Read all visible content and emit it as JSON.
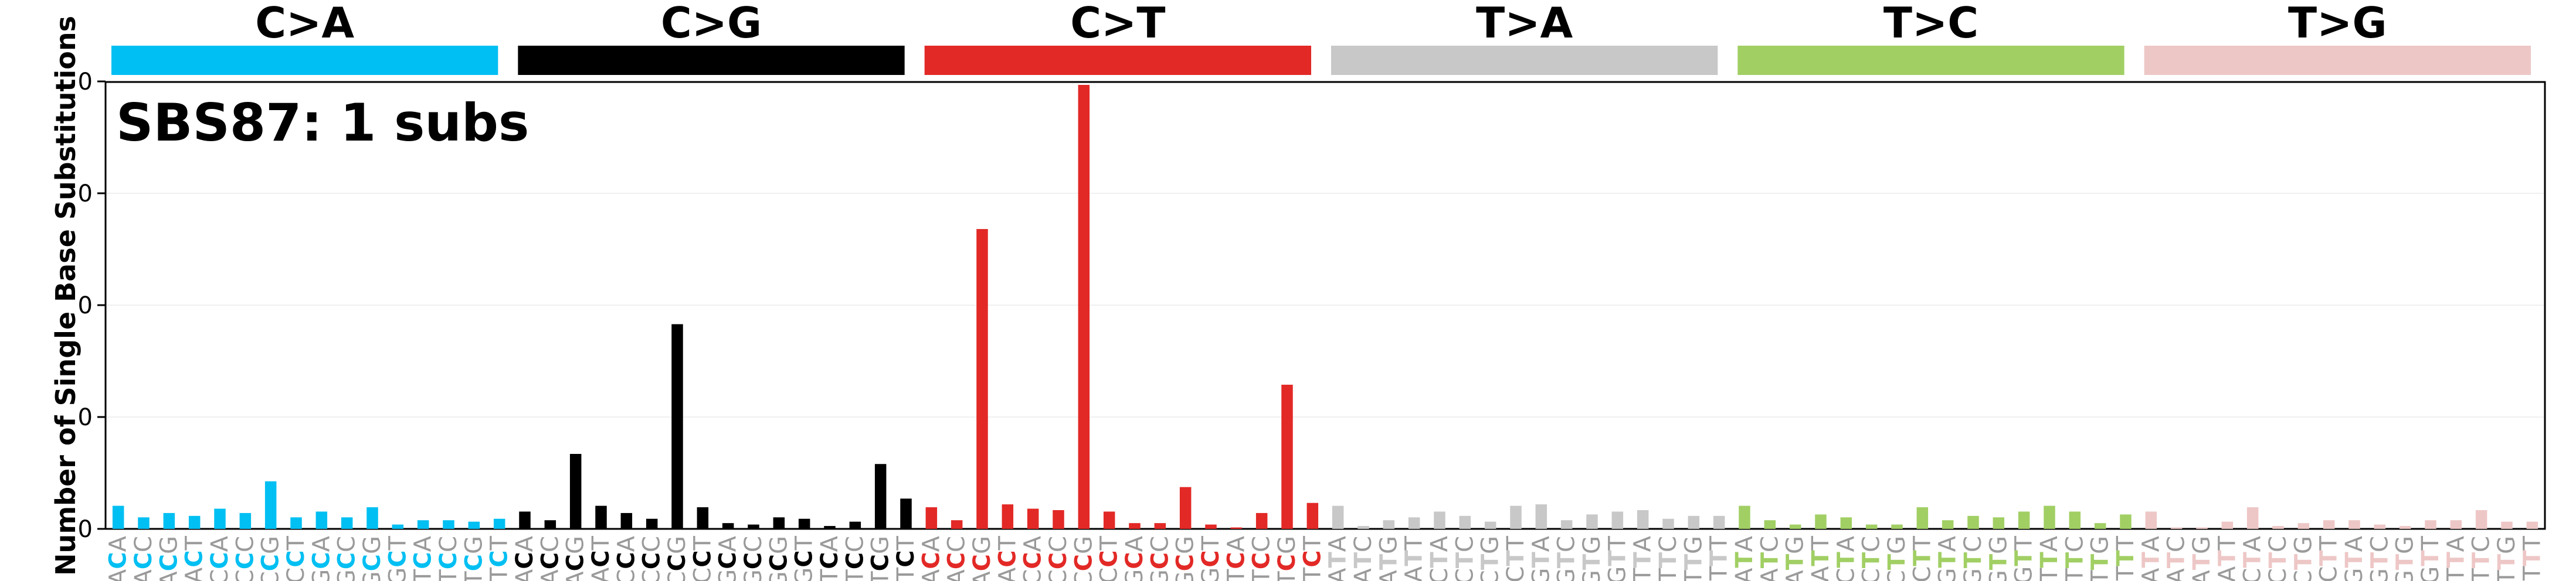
{
  "chart_data": {
    "type": "bar",
    "title": "SBS87: 1 subs",
    "ylabel": "Number of Single Base Substitutions",
    "ylim": [
      0,
      0.31
    ],
    "yticks": [
      "0",
      "0",
      "0",
      "0",
      "0"
    ],
    "grid": true,
    "colors": [
      "#00bff2",
      "#000000",
      "#e22926",
      "#c8c8c8",
      "#a1cf64",
      "#edc7c6"
    ],
    "groups": [
      "C>A",
      "C>G",
      "C>T",
      "T>A",
      "T>C",
      "T>G"
    ],
    "categories": [
      "ACA",
      "ACC",
      "ACG",
      "ACT",
      "CCA",
      "CCC",
      "CCG",
      "CCT",
      "GCA",
      "GCC",
      "GCG",
      "GCT",
      "TCA",
      "TCC",
      "TCG",
      "TCT",
      "ACA",
      "ACC",
      "ACG",
      "ACT",
      "CCA",
      "CCC",
      "CCG",
      "CCT",
      "GCA",
      "GCC",
      "GCG",
      "GCT",
      "TCA",
      "TCC",
      "TCG",
      "TCT",
      "ACA",
      "ACC",
      "ACG",
      "ACT",
      "CCA",
      "CCC",
      "CCG",
      "CCT",
      "GCA",
      "GCC",
      "GCG",
      "GCT",
      "TCA",
      "TCC",
      "TCG",
      "TCT",
      "ATA",
      "ATC",
      "ATG",
      "ATT",
      "CTA",
      "CTC",
      "CTG",
      "CTT",
      "GTA",
      "GTC",
      "GTG",
      "GTT",
      "TTA",
      "TTC",
      "TTG",
      "TTT",
      "ATA",
      "ATC",
      "ATG",
      "ATT",
      "CTA",
      "CTC",
      "CTG",
      "CTT",
      "GTA",
      "GTC",
      "GTG",
      "GTT",
      "TTA",
      "TTC",
      "TTG",
      "TTT",
      "ATA",
      "ATC",
      "ATG",
      "ATT",
      "CTA",
      "CTC",
      "CTG",
      "CTT",
      "GTA",
      "GTC",
      "GTG",
      "GTT",
      "TTA",
      "TTC",
      "TTG",
      "TTT"
    ],
    "values": [
      0.016,
      0.008,
      0.011,
      0.009,
      0.014,
      0.011,
      0.033,
      0.008,
      0.012,
      0.008,
      0.015,
      0.003,
      0.006,
      0.006,
      0.005,
      0.007,
      0.012,
      0.006,
      0.052,
      0.016,
      0.011,
      0.007,
      0.142,
      0.015,
      0.004,
      0.003,
      0.008,
      0.007,
      0.002,
      0.005,
      0.045,
      0.021,
      0.015,
      0.006,
      0.208,
      0.017,
      0.014,
      0.013,
      0.308,
      0.012,
      0.004,
      0.004,
      0.029,
      0.003,
      0.001,
      0.011,
      0.1,
      0.018,
      0.016,
      0.002,
      0.006,
      0.008,
      0.012,
      0.009,
      0.005,
      0.016,
      0.017,
      0.006,
      0.01,
      0.012,
      0.013,
      0.007,
      0.009,
      0.009,
      0.016,
      0.006,
      0.003,
      0.01,
      0.008,
      0.003,
      0.003,
      0.015,
      0.006,
      0.009,
      0.008,
      0.012,
      0.016,
      0.012,
      0.004,
      0.01,
      0.012,
      0.001,
      0.001,
      0.005,
      0.015,
      0.002,
      0.004,
      0.006,
      0.006,
      0.003,
      0.002,
      0.006,
      0.006,
      0.013,
      0.005,
      0.005
    ]
  }
}
